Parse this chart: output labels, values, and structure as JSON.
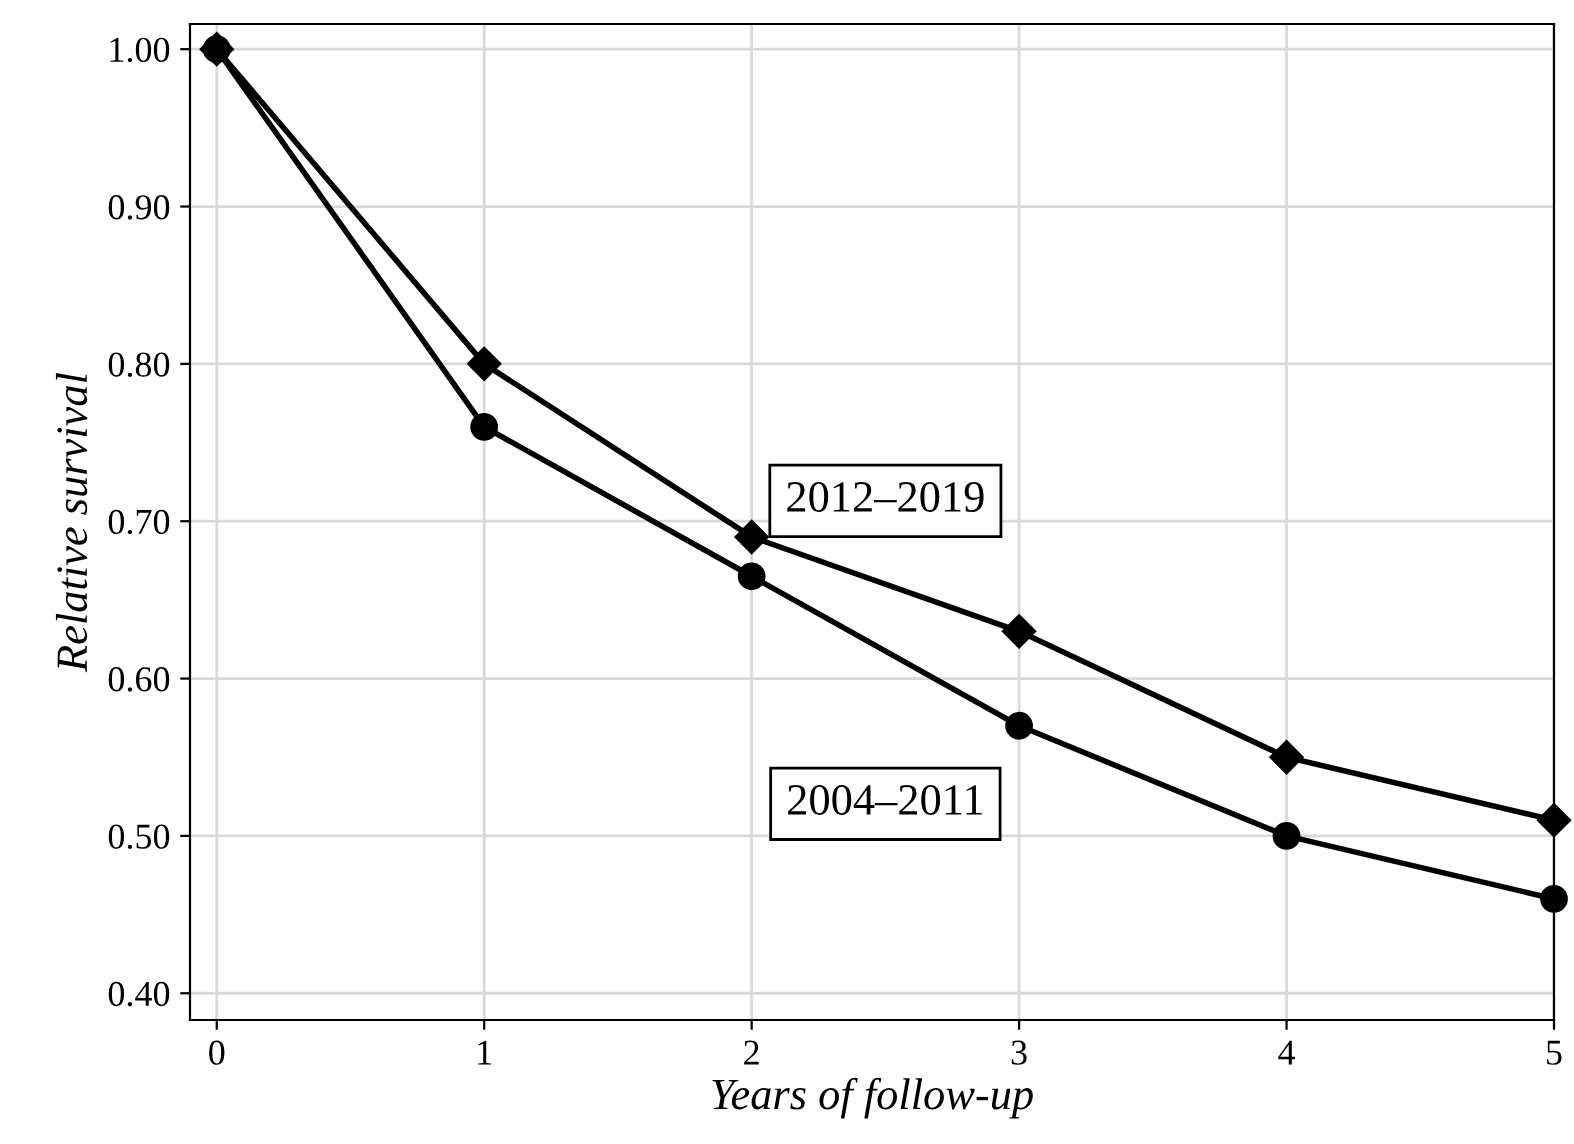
{
  "chart_data": {
    "type": "line",
    "xlabel": "Years of follow-up",
    "ylabel": "Relative survival",
    "x": [
      0,
      1,
      2,
      3,
      4,
      5
    ],
    "series": [
      {
        "name": "2012–2019",
        "color": "#000000",
        "marker": "diamond",
        "values": [
          1.0,
          0.8,
          0.69,
          0.63,
          0.55,
          0.51
        ]
      },
      {
        "name": "2004–2011",
        "color": "#000000",
        "marker": "circle",
        "values": [
          1.0,
          0.76,
          0.665,
          0.57,
          0.5,
          0.46
        ]
      }
    ],
    "xlim": [
      -0.1,
      5
    ],
    "xticks": [
      0,
      1,
      2,
      3,
      4,
      5
    ],
    "ylim": [
      0.383,
      1.016
    ],
    "yticks": [
      {
        "value": 0.4,
        "label": "0.40"
      },
      {
        "value": 0.5,
        "label": "0.50"
      },
      {
        "value": 0.6,
        "label": "0.60"
      },
      {
        "value": 0.7,
        "label": "0.70"
      },
      {
        "value": 0.8,
        "label": "0.80"
      },
      {
        "value": 0.9,
        "label": "0.90"
      },
      {
        "value": 1.0,
        "label": "1.00"
      }
    ],
    "grid": true,
    "line_style": "solid"
  }
}
